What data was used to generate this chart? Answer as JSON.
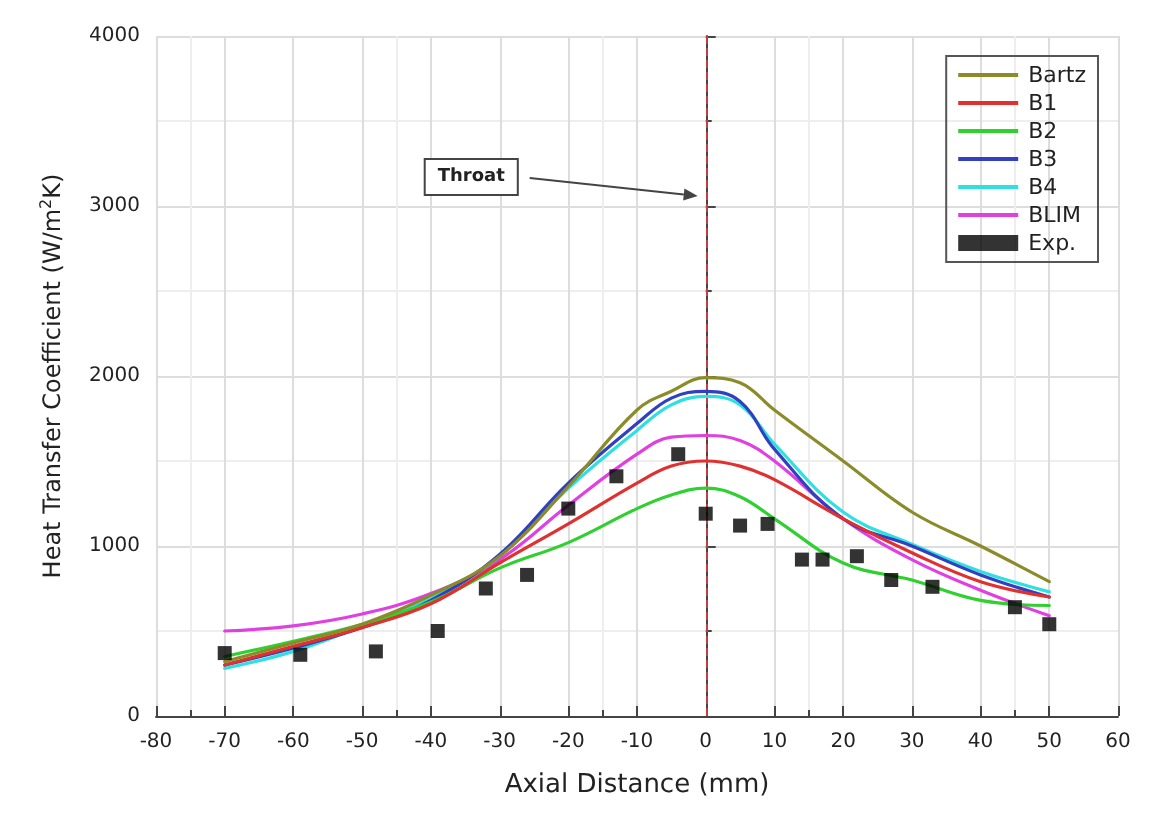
{
  "chart_data": {
    "type": "line",
    "xlabel": "Axial Distance (mm)",
    "ylabel": "Heat Transfer Coefficient (W/m$^{2}$K)",
    "x": [
      -70,
      -60,
      -50,
      -40,
      -30,
      -20,
      -10,
      -5,
      0,
      5,
      10,
      20,
      30,
      40,
      50
    ],
    "series": [
      {
        "name": "Bartz",
        "color": "#8b8b2a",
        "values": [
          320,
          430,
          540,
          710,
          940,
          1350,
          1800,
          1910,
          1990,
          1960,
          1800,
          1500,
          1200,
          1000,
          790
        ]
      },
      {
        "name": "B1",
        "color": "#e03030",
        "values": [
          300,
          410,
          520,
          660,
          900,
          1130,
          1370,
          1470,
          1500,
          1470,
          1390,
          1160,
          960,
          790,
          700
        ]
      },
      {
        "name": "B2",
        "color": "#30d030",
        "values": [
          350,
          440,
          540,
          670,
          870,
          1020,
          1220,
          1300,
          1340,
          1290,
          1160,
          900,
          800,
          680,
          650
        ]
      },
      {
        "name": "B3",
        "color": "#3040c0",
        "values": [
          300,
          400,
          520,
          680,
          950,
          1370,
          1720,
          1870,
          1910,
          1850,
          1570,
          1160,
          1000,
          830,
          700
        ]
      },
      {
        "name": "B4",
        "color": "#30e0e0",
        "values": [
          280,
          380,
          530,
          690,
          940,
          1340,
          1680,
          1830,
          1880,
          1830,
          1600,
          1200,
          1010,
          850,
          730
        ]
      },
      {
        "name": "BLIM",
        "color": "#e040e0",
        "values": [
          500,
          530,
          600,
          720,
          920,
          1240,
          1540,
          1640,
          1650,
          1620,
          1500,
          1160,
          920,
          740,
          590
        ]
      },
      {
        "name": "Exp.",
        "type": "scatter",
        "marker": "square",
        "color": "#000000",
        "x": [
          -70,
          -59,
          -48,
          -39,
          -32,
          -26,
          -20,
          -13,
          -4,
          0,
          5,
          9,
          14,
          17,
          22,
          27,
          33,
          45,
          50
        ],
        "values": [
          370,
          360,
          380,
          500,
          750,
          830,
          1220,
          1410,
          1540,
          1190,
          1120,
          1130,
          920,
          920,
          940,
          800,
          760,
          640,
          540
        ]
      }
    ],
    "xlim": [
      -80,
      60
    ],
    "xticks": [
      -80,
      -70,
      -60,
      -50,
      -40,
      -30,
      -20,
      -10,
      0,
      10,
      20,
      30,
      40,
      50,
      60
    ],
    "ylim": [
      0,
      4000
    ],
    "yticks": [
      0,
      1000,
      2000,
      3000,
      4000
    ],
    "ref_lines": [
      {
        "axis": "x",
        "value": 0,
        "color": "#c04040",
        "line_style": "dashed"
      }
    ],
    "annotations": [
      "Throat"
    ],
    "grid": true,
    "legend": "top right",
    "marker": "none",
    "line_style": "solid"
  }
}
